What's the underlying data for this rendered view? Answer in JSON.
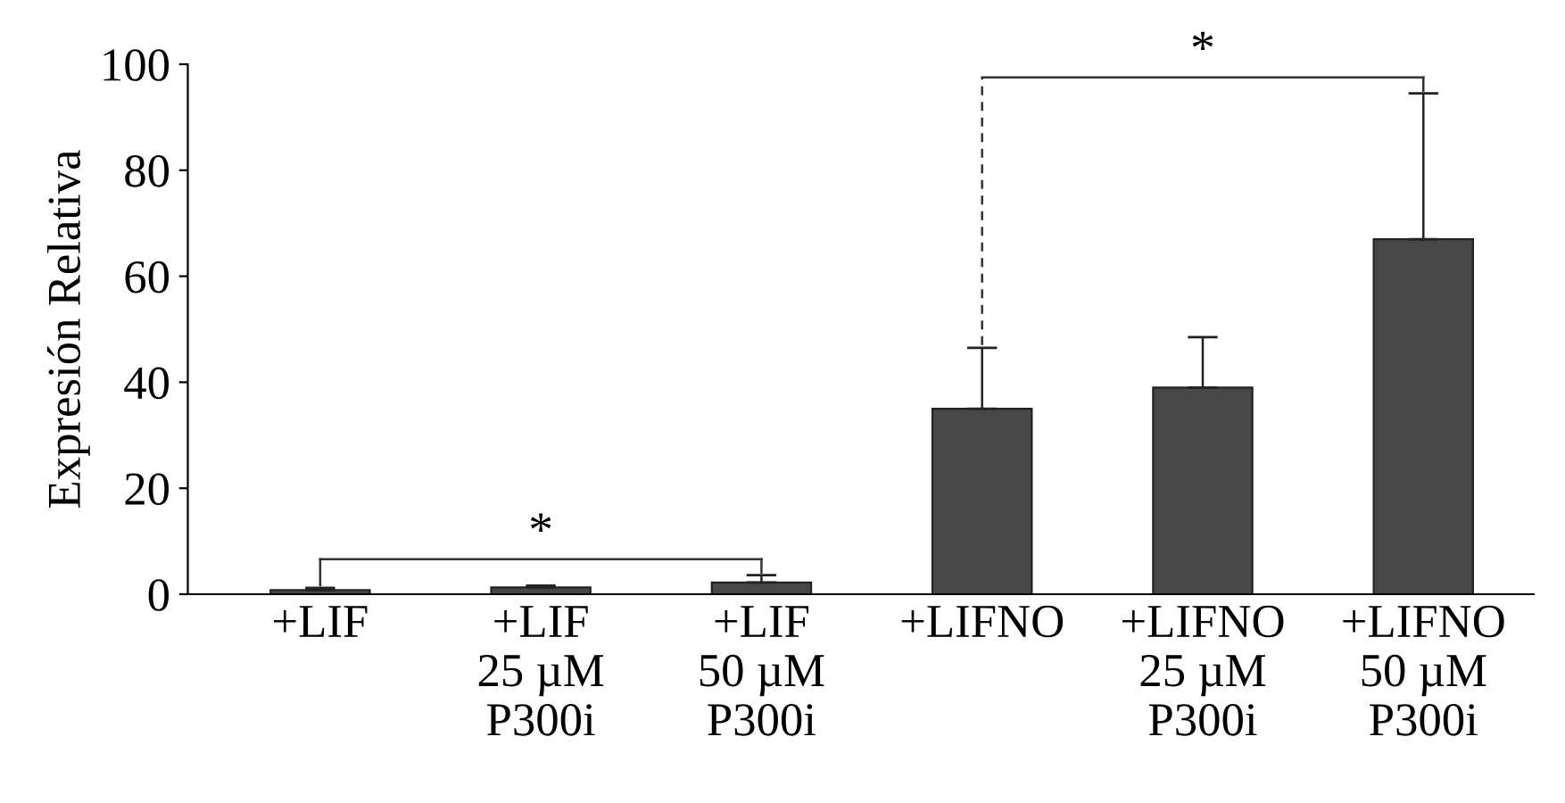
{
  "chart_data": {
    "type": "bar",
    "ylabel": "Expresión Relativa",
    "categories": [
      "+LIF",
      "+LIF\n25 µM\nP300i",
      "+LIF\n50 µM\nP300i",
      "+LIFNO",
      "+LIFNO\n25 µM\nP300i",
      "+LIFNO\n50 µM\nP300i"
    ],
    "values": [
      0.8,
      1.3,
      2.2,
      35,
      39,
      67
    ],
    "errors": [
      [
        0.8,
        1.2
      ],
      [
        1.3,
        1.6
      ],
      [
        2.2,
        3.6
      ],
      [
        35,
        46.5
      ],
      [
        39,
        48.5
      ],
      [
        67,
        94.5
      ]
    ],
    "color": "#474747",
    "ylim": [
      0,
      100
    ],
    "yticks": [
      0,
      20,
      40,
      60,
      80,
      100
    ],
    "grid": false,
    "annotations": [
      "*",
      "*"
    ]
  }
}
